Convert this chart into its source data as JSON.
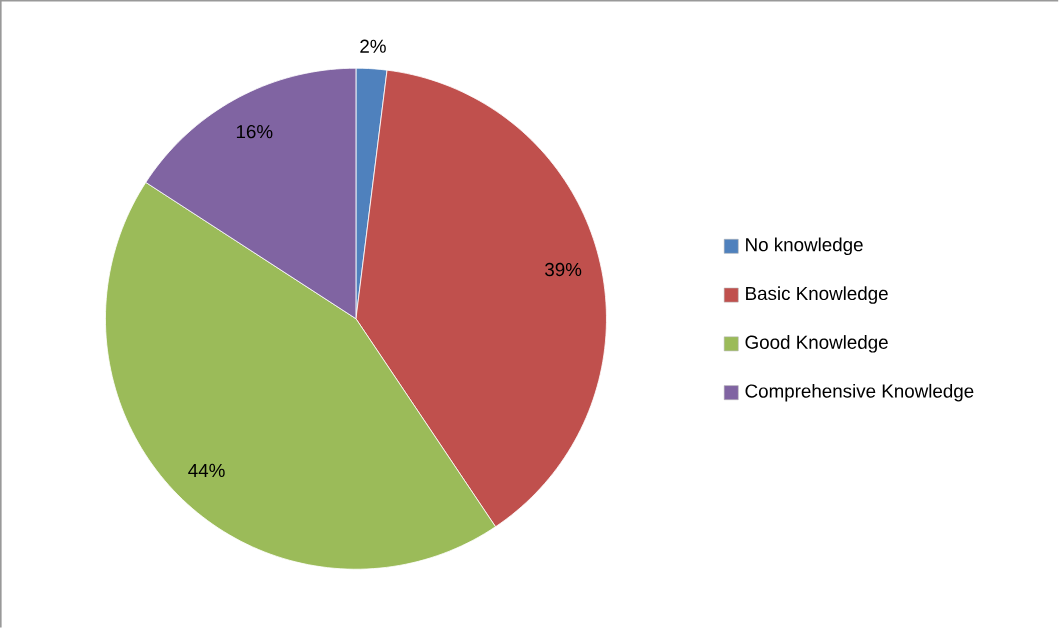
{
  "chart_data": {
    "type": "pie",
    "categories": [
      "No knowledge",
      "Basic Knowledge",
      "Good Knowledge",
      "Comprehensive Knowledge"
    ],
    "values": [
      2,
      39,
      44,
      16
    ],
    "colors": [
      "#4f81bd",
      "#c0504d",
      "#9bbb59",
      "#8064a2"
    ],
    "value_labels": [
      "2%",
      "39%",
      "44%",
      "16%"
    ],
    "legend": "right"
  }
}
